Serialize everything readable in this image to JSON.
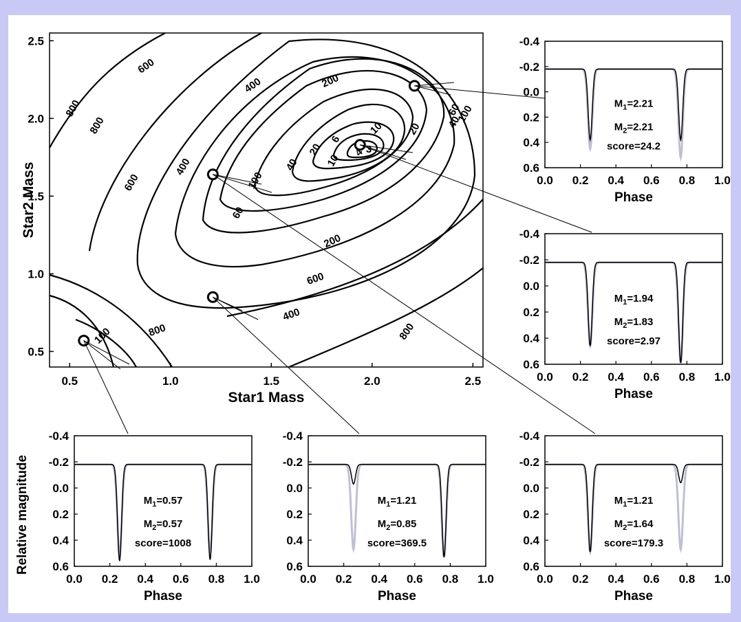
{
  "colors": {
    "background": "#c9c9f6",
    "panel": "#ffffff",
    "ink": "#000000",
    "observed": "#8a8ab0"
  },
  "chart_data": [
    {
      "type": "contour",
      "xlabel": "Star1 Mass",
      "ylabel": "Star2 Mass",
      "xlim": [
        0.4,
        2.55
      ],
      "ylim": [
        0.4,
        2.55
      ],
      "xticks": [
        "0.5",
        "1.0",
        "1.5",
        "2.0",
        "2.5"
      ],
      "yticks": [
        "0.5",
        "1.0",
        "1.5",
        "2.0",
        "2.5"
      ],
      "minimum": [
        1.94,
        1.83
      ],
      "contour_labels": [
        "800",
        "600",
        "400",
        "200",
        "100",
        "60",
        "40",
        "20",
        "10",
        "6",
        "4",
        "3",
        "800",
        "600",
        "400",
        "200",
        "100",
        "60",
        "40",
        "20",
        "10",
        "800",
        "600",
        "400",
        "800",
        "100"
      ],
      "markers": [
        {
          "x": 2.21,
          "y": 2.21
        },
        {
          "x": 1.94,
          "y": 1.83
        },
        {
          "x": 1.21,
          "y": 1.64
        },
        {
          "x": 1.21,
          "y": 0.85
        },
        {
          "x": 0.57,
          "y": 0.57
        }
      ]
    },
    {
      "type": "line",
      "id": "p221",
      "xlabel": "Phase",
      "ylabel": "",
      "xlim": [
        0,
        1
      ],
      "ylim": [
        0.6,
        -0.4
      ],
      "xticks": [
        "0.0",
        "0.2",
        "0.4",
        "0.6",
        "0.8",
        "1.0"
      ],
      "yticks": [
        "-0.4",
        "-0.2",
        "0.0",
        "0.2",
        "0.4",
        "0.6"
      ],
      "m1": "2.21",
      "m2": "2.21",
      "score": "score=24.2",
      "baseline": -0.18,
      "model_primary_depth": 0.38,
      "model_secondary_depth": 0.38,
      "obs_primary_depth": 0.45,
      "obs_secondary_depth": 0.52
    },
    {
      "type": "line",
      "id": "p194",
      "xlabel": "Phase",
      "ylabel": "",
      "xlim": [
        0,
        1
      ],
      "ylim": [
        0.6,
        -0.4
      ],
      "xticks": [
        "0.0",
        "0.2",
        "0.4",
        "0.6",
        "0.8",
        "1.0"
      ],
      "yticks": [
        "-0.4",
        "-0.2",
        "0.0",
        "0.2",
        "0.4",
        "0.6"
      ],
      "m1": "1.94",
      "m2": "1.83",
      "score": "score=2.97",
      "baseline": -0.18,
      "model_primary_depth": 0.46,
      "model_secondary_depth": 0.59,
      "obs_primary_depth": 0.46,
      "obs_secondary_depth": 0.59
    },
    {
      "type": "line",
      "id": "p057",
      "xlabel": "Phase",
      "ylabel": "Relative magnitude",
      "xlim": [
        0,
        1
      ],
      "ylim": [
        0.6,
        -0.4
      ],
      "xticks": [
        "0.0",
        "0.2",
        "0.4",
        "0.6",
        "0.8",
        "1.0"
      ],
      "yticks": [
        "-0.4",
        "-0.2",
        "0.0",
        "0.2",
        "0.4",
        "0.6"
      ],
      "m1": "0.57",
      "m2": "0.57",
      "score": "score=1008",
      "baseline": -0.18,
      "model_primary_depth": 0.56,
      "model_secondary_depth": 0.55,
      "obs_primary_depth": 0.52,
      "obs_secondary_depth": 0.5
    },
    {
      "type": "line",
      "id": "p121a",
      "xlabel": "Phase",
      "ylabel": "",
      "xlim": [
        0,
        1
      ],
      "ylim": [
        0.6,
        -0.4
      ],
      "xticks": [
        "0.0",
        "0.2",
        "0.4",
        "0.6",
        "0.8",
        "1.0"
      ],
      "yticks": [
        "-0.4",
        "-0.2",
        "0.0",
        "0.2",
        "0.4",
        "0.6"
      ],
      "m1": "1.21",
      "m2": "0.85",
      "score": "score=369.5",
      "baseline": -0.18,
      "model_primary_depth": -0.03,
      "model_secondary_depth": 0.53,
      "obs_primary_depth": 0.47,
      "obs_secondary_depth": 0.53
    },
    {
      "type": "line",
      "id": "p121b",
      "xlabel": "Phase",
      "ylabel": "",
      "xlim": [
        0,
        1
      ],
      "ylim": [
        0.6,
        -0.4
      ],
      "xticks": [
        "0.0",
        "0.2",
        "0.4",
        "0.6",
        "0.8",
        "1.0"
      ],
      "yticks": [
        "-0.4",
        "-0.2",
        "0.0",
        "0.2",
        "0.4",
        "0.6"
      ],
      "m1": "1.21",
      "m2": "1.64",
      "score": "score=179.3",
      "baseline": -0.18,
      "model_primary_depth": 0.49,
      "model_secondary_depth": -0.04,
      "obs_primary_depth": 0.49,
      "obs_secondary_depth": 0.47
    }
  ]
}
